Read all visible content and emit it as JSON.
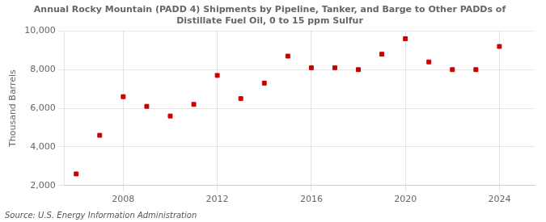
{
  "chart_data": {
    "type": "scatter",
    "title": "Annual Rocky Mountain (PADD 4) Shipments by Pipeline, Tanker, and Barge to Other PADDs of\nDistillate Fuel Oil, 0 to 15 ppm Sulfur",
    "ylabel": "Thousand Barrels",
    "source": "Source: U.S. Energy Information Administration",
    "x": [
      2006,
      2007,
      2008,
      2009,
      2010,
      2011,
      2012,
      2013,
      2014,
      2015,
      2016,
      2017,
      2018,
      2019,
      2020,
      2021,
      2022,
      2023,
      2024
    ],
    "values": [
      2600,
      4600,
      6600,
      6100,
      5600,
      6200,
      7700,
      6500,
      7300,
      8700,
      8100,
      8100,
      8000,
      8800,
      9600,
      8400,
      8000,
      8000,
      9200
    ],
    "color": "#cc0000",
    "marker": "square",
    "xlim": [
      2005.5,
      2025.5
    ],
    "xticks": [
      2008,
      2012,
      2016,
      2020,
      2024
    ],
    "ylim": [
      2000,
      10000
    ],
    "yticks": [
      {
        "value": 2000,
        "label": "2,000"
      },
      {
        "value": 4000,
        "label": "4,000"
      },
      {
        "value": 6000,
        "label": "6,000"
      },
      {
        "value": 8000,
        "label": "8,000"
      },
      {
        "value": 10000,
        "label": "10,000"
      }
    ],
    "grid": true
  }
}
